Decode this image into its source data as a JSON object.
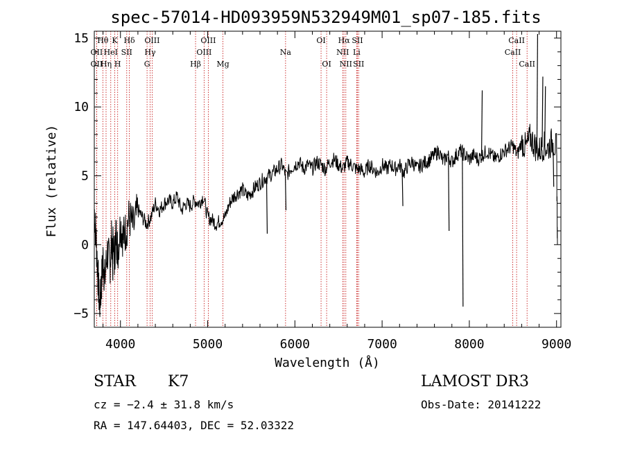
{
  "chart_data": {
    "type": "line",
    "title": "spec-57014-HD093959N532949M01_sp07-185.fits",
    "xlabel": "Wavelength (Å)",
    "ylabel": "Flux (relative)",
    "xlim": [
      3700,
      9050
    ],
    "ylim": [
      -6,
      15.5
    ],
    "xticks": [
      4000,
      5000,
      6000,
      7000,
      8000,
      9000
    ],
    "yticks": [
      -5,
      0,
      5,
      10,
      15
    ],
    "series": [
      {
        "name": "flux",
        "x": [
          3700,
          3720,
          3740,
          3760,
          3780,
          3800,
          3820,
          3850,
          3880,
          3900,
          3930,
          3950,
          3970,
          4000,
          4030,
          4060,
          4100,
          4150,
          4200,
          4250,
          4300,
          4350,
          4400,
          4450,
          4500,
          4550,
          4600,
          4650,
          4700,
          4750,
          4800,
          4850,
          4900,
          4950,
          5000,
          5050,
          5100,
          5150,
          5200,
          5250,
          5300,
          5350,
          5400,
          5450,
          5500,
          5550,
          5600,
          5650,
          5700,
          5750,
          5800,
          5850,
          5900,
          5950,
          6000,
          6050,
          6100,
          6150,
          6200,
          6250,
          6300,
          6350,
          6400,
          6450,
          6500,
          6550,
          6600,
          6650,
          6700,
          6750,
          6800,
          6850,
          6900,
          6950,
          7000,
          7050,
          7100,
          7150,
          7200,
          7250,
          7300,
          7350,
          7400,
          7450,
          7500,
          7550,
          7600,
          7650,
          7700,
          7750,
          7800,
          7850,
          7900,
          7950,
          8000,
          8050,
          8100,
          8150,
          8200,
          8250,
          8300,
          8350,
          8400,
          8450,
          8500,
          8550,
          8600,
          8650,
          8700,
          8750,
          8800,
          8850,
          8900,
          8950,
          9000,
          9010
        ],
        "y": [
          2.5,
          0.5,
          -2.0,
          -4.5,
          -3.0,
          -1.0,
          -2.5,
          -0.5,
          -1.5,
          0.5,
          -1.0,
          0.8,
          -0.5,
          1.5,
          0.5,
          1.0,
          2.0,
          1.2,
          2.5,
          2.0,
          1.5,
          2.0,
          3.0,
          2.5,
          3.0,
          3.2,
          3.0,
          3.5,
          2.5,
          3.0,
          2.8,
          3.2,
          3.0,
          3.5,
          2.0,
          1.8,
          1.5,
          1.8,
          2.0,
          3.0,
          3.5,
          3.8,
          4.0,
          3.5,
          3.8,
          4.2,
          4.5,
          4.8,
          5.0,
          5.2,
          5.5,
          5.8,
          5.0,
          5.5,
          5.8,
          6.0,
          5.5,
          5.8,
          5.5,
          6.0,
          5.8,
          5.5,
          6.0,
          6.2,
          5.8,
          5.5,
          6.0,
          5.8,
          5.5,
          5.5,
          5.2,
          5.8,
          5.5,
          5.2,
          5.8,
          5.5,
          5.8,
          5.5,
          5.8,
          5.2,
          5.8,
          6.0,
          5.5,
          5.8,
          6.0,
          6.2,
          6.5,
          6.8,
          6.0,
          6.5,
          6.0,
          6.5,
          6.8,
          6.5,
          6.2,
          6.5,
          6.2,
          6.5,
          6.8,
          6.5,
          6.2,
          6.5,
          6.8,
          7.0,
          7.2,
          6.5,
          7.5,
          7.0,
          7.8,
          7.2,
          6.8,
          7.2,
          7.0,
          7.5,
          7.0,
          0.0
        ],
        "spikes": [
          {
            "x": 3905,
            "y": -2.6
          },
          {
            "x": 5675,
            "y": 0.8
          },
          {
            "x": 5890,
            "y": 2.5
          },
          {
            "x": 7230,
            "y": 2.8
          },
          {
            "x": 7760,
            "y": 1.0
          },
          {
            "x": 7920,
            "y": -4.5
          },
          {
            "x": 8140,
            "y": 11.2
          },
          {
            "x": 8775,
            "y": 15.3
          },
          {
            "x": 8835,
            "y": 12.2
          },
          {
            "x": 8865,
            "y": 11.5
          },
          {
            "x": 8960,
            "y": 4.2
          }
        ]
      }
    ],
    "lines": [
      {
        "label": "Hθ",
        "x": 3798,
        "row": 0
      },
      {
        "label": "K",
        "x": 3934,
        "row": 0
      },
      {
        "label": "Hδ",
        "x": 4102,
        "row": 0
      },
      {
        "label": "OIII",
        "x": 4363,
        "row": 0
      },
      {
        "label": "OIII",
        "x": 5007,
        "row": 0
      },
      {
        "label": "OI",
        "x": 6300,
        "row": 0
      },
      {
        "label": "Hα",
        "x": 6563,
        "row": 0
      },
      {
        "label": "SII",
        "x": 6717,
        "row": 0
      },
      {
        "label": "CaII",
        "x": 8542,
        "row": 0
      },
      {
        "label": "OII",
        "x": 3727,
        "row": 1
      },
      {
        "label": "HeI",
        "x": 3889,
        "row": 1
      },
      {
        "label": "SII",
        "x": 4072,
        "row": 1
      },
      {
        "label": "Hγ",
        "x": 4340,
        "row": 1
      },
      {
        "label": "OIII",
        "x": 4959,
        "row": 1
      },
      {
        "label": "Na",
        "x": 5893,
        "row": 1
      },
      {
        "label": "NII",
        "x": 6548,
        "row": 1
      },
      {
        "label": "Li",
        "x": 6708,
        "row": 1
      },
      {
        "label": "CaII",
        "x": 8498,
        "row": 1
      },
      {
        "label": "OII",
        "x": 3727,
        "row": 2
      },
      {
        "label": "Hη",
        "x": 3835,
        "row": 2
      },
      {
        "label": "H",
        "x": 3968,
        "row": 2
      },
      {
        "label": "G",
        "x": 4305,
        "row": 2
      },
      {
        "label": "Hβ",
        "x": 4861,
        "row": 2
      },
      {
        "label": "Mg",
        "x": 5175,
        "row": 2
      },
      {
        "label": "OI",
        "x": 6364,
        "row": 2
      },
      {
        "label": "NII",
        "x": 6584,
        "row": 2
      },
      {
        "label": "SII",
        "x": 6731,
        "row": 2
      },
      {
        "label": "CaII",
        "x": 8662,
        "row": 2
      }
    ],
    "line_color": "#c00000"
  },
  "info": {
    "object_type": "STAR",
    "subclass": "K7",
    "survey": "LAMOST DR3",
    "cz": "cz = −2.4 ± 31.8 km/s",
    "obs_date": "Obs-Date: 20141222",
    "coords": "RA = 147.64403, DEC =  52.03322"
  }
}
